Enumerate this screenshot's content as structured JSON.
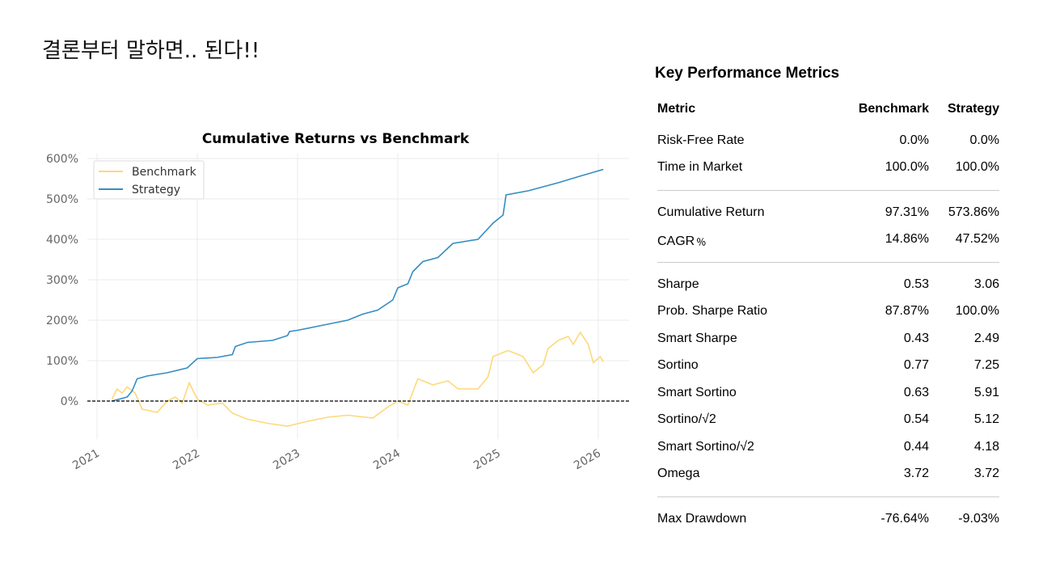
{
  "headline": "결론부터 말하면.. 된다!!",
  "metrics": {
    "title": "Key Performance Metrics",
    "headers": [
      "Metric",
      "Benchmark",
      "Strategy"
    ],
    "groups": [
      [
        [
          "Risk-Free Rate",
          "0.0%",
          "0.0%"
        ],
        [
          "Time in Market",
          "100.0%",
          "100.0%"
        ]
      ],
      [
        [
          "Cumulative Return",
          "97.31%",
          "573.86%"
        ],
        [
          "CAGR﹪",
          "14.86%",
          "47.52%"
        ]
      ],
      [
        [
          "Sharpe",
          "0.53",
          "3.06"
        ],
        [
          "Prob. Sharpe Ratio",
          "87.87%",
          "100.0%"
        ],
        [
          "Smart Sharpe",
          "0.43",
          "2.49"
        ],
        [
          "Sortino",
          "0.77",
          "7.25"
        ],
        [
          "Smart Sortino",
          "0.63",
          "5.91"
        ],
        [
          "Sortino/√2",
          "0.54",
          "5.12"
        ],
        [
          "Smart Sortino/√2",
          "0.44",
          "4.18"
        ],
        [
          "Omega",
          "3.72",
          "3.72"
        ]
      ],
      [
        [
          "Max Drawdown",
          "-76.64%",
          "-9.03%"
        ]
      ]
    ]
  },
  "chart_data": {
    "type": "line",
    "title": "Cumulative Returns vs Benchmark",
    "xlabel": "",
    "ylabel": "",
    "xlim": [
      2020.9,
      2026.3
    ],
    "ylim": [
      -90,
      610
    ],
    "xticks": [
      2021,
      2022,
      2023,
      2024,
      2025,
      2026
    ],
    "yticks": [
      0,
      100,
      200,
      300,
      400,
      500,
      600
    ],
    "ytick_labels": [
      "0%",
      "100%",
      "200%",
      "300%",
      "400%",
      "500%",
      "600%"
    ],
    "grid": true,
    "legend": "top-left",
    "baseline": 0,
    "series": [
      {
        "name": "Benchmark",
        "color": "#fdd97a",
        "points": [
          [
            2021.15,
            5
          ],
          [
            2021.2,
            30
          ],
          [
            2021.25,
            20
          ],
          [
            2021.3,
            35
          ],
          [
            2021.38,
            20
          ],
          [
            2021.45,
            -20
          ],
          [
            2021.6,
            -28
          ],
          [
            2021.7,
            0
          ],
          [
            2021.78,
            10
          ],
          [
            2021.85,
            -5
          ],
          [
            2021.92,
            45
          ],
          [
            2022.0,
            5
          ],
          [
            2022.1,
            -10
          ],
          [
            2022.25,
            -5
          ],
          [
            2022.35,
            -30
          ],
          [
            2022.5,
            -45
          ],
          [
            2022.7,
            -55
          ],
          [
            2022.9,
            -62
          ],
          [
            2023.1,
            -50
          ],
          [
            2023.3,
            -40
          ],
          [
            2023.5,
            -35
          ],
          [
            2023.75,
            -42
          ],
          [
            2023.9,
            -15
          ],
          [
            2024.0,
            0
          ],
          [
            2024.1,
            -10
          ],
          [
            2024.2,
            55
          ],
          [
            2024.35,
            40
          ],
          [
            2024.5,
            50
          ],
          [
            2024.6,
            30
          ],
          [
            2024.8,
            30
          ],
          [
            2024.9,
            60
          ],
          [
            2024.95,
            110
          ],
          [
            2025.1,
            125
          ],
          [
            2025.25,
            110
          ],
          [
            2025.35,
            70
          ],
          [
            2025.45,
            90
          ],
          [
            2025.5,
            130
          ],
          [
            2025.6,
            150
          ],
          [
            2025.7,
            160
          ],
          [
            2025.75,
            140
          ],
          [
            2025.82,
            170
          ],
          [
            2025.9,
            140
          ],
          [
            2025.95,
            95
          ],
          [
            2026.02,
            110
          ],
          [
            2026.05,
            97
          ]
        ]
      },
      {
        "name": "Strategy",
        "color": "#348dc1",
        "points": [
          [
            2021.15,
            0
          ],
          [
            2021.3,
            10
          ],
          [
            2021.35,
            25
          ],
          [
            2021.4,
            55
          ],
          [
            2021.5,
            62
          ],
          [
            2021.7,
            70
          ],
          [
            2021.9,
            82
          ],
          [
            2022.0,
            105
          ],
          [
            2022.2,
            108
          ],
          [
            2022.35,
            115
          ],
          [
            2022.38,
            135
          ],
          [
            2022.5,
            145
          ],
          [
            2022.75,
            150
          ],
          [
            2022.9,
            162
          ],
          [
            2022.92,
            172
          ],
          [
            2023.0,
            175
          ],
          [
            2023.2,
            185
          ],
          [
            2023.5,
            200
          ],
          [
            2023.65,
            215
          ],
          [
            2023.8,
            225
          ],
          [
            2023.95,
            250
          ],
          [
            2024.0,
            280
          ],
          [
            2024.1,
            290
          ],
          [
            2024.15,
            320
          ],
          [
            2024.25,
            345
          ],
          [
            2024.4,
            355
          ],
          [
            2024.55,
            390
          ],
          [
            2024.8,
            400
          ],
          [
            2024.95,
            440
          ],
          [
            2025.05,
            460
          ],
          [
            2025.08,
            510
          ],
          [
            2025.3,
            520
          ],
          [
            2025.6,
            540
          ],
          [
            2025.8,
            555
          ],
          [
            2026.05,
            573
          ]
        ]
      }
    ]
  }
}
